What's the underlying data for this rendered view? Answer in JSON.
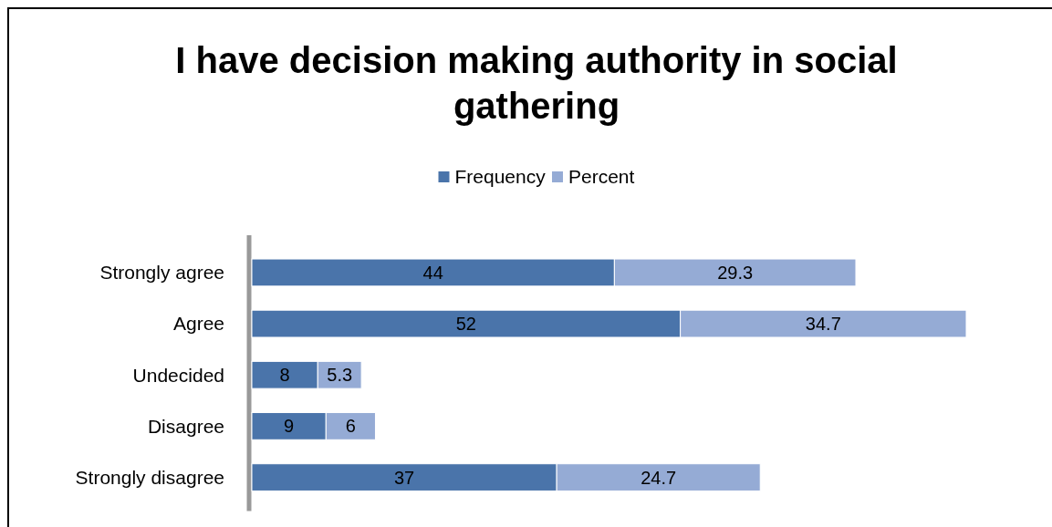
{
  "chart_data": {
    "type": "bar",
    "orientation": "horizontal",
    "stacked": true,
    "title": "I have decision making authority in social gathering",
    "categories": [
      "Strongly agree",
      "Agree",
      "Undecided",
      "Disagree",
      "Strongly disagree"
    ],
    "series": [
      {
        "name": "Frequency",
        "color": "#4a74aa",
        "values": [
          44,
          52,
          8,
          9,
          37
        ]
      },
      {
        "name": "Percent",
        "color": "#95abd5",
        "values": [
          29.3,
          34.7,
          5.3,
          6,
          24.7
        ]
      }
    ],
    "data_labels": true,
    "legend": "top",
    "grid": false
  }
}
